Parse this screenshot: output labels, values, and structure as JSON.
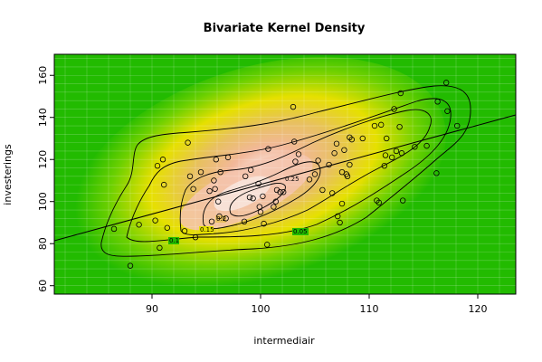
{
  "chart_data": {
    "type": "scatter",
    "title": "Bivariate Kernel Density",
    "xlabel": "intermediair",
    "ylabel": "investerings",
    "xlim": [
      81,
      123.5
    ],
    "ylim": [
      56,
      170
    ],
    "x_ticks": [
      90,
      100,
      110,
      120
    ],
    "y_ticks": [
      60,
      80,
      100,
      120,
      140,
      160
    ],
    "grid": true,
    "background_colors": {
      "low": "#22bb00",
      "mid": "#e8e000",
      "high": "#f4c0a8",
      "peak": "#f8e4dc"
    },
    "contour_levels": [
      "0.05",
      "0.1",
      "0.15",
      "0.2",
      "0.25"
    ],
    "regression_line": {
      "x": [
        81,
        123.5
      ],
      "y": [
        81.4,
        141.2
      ]
    },
    "points": [
      [
        86.5,
        87
      ],
      [
        88,
        69.5
      ],
      [
        88.8,
        89
      ],
      [
        90.3,
        91
      ],
      [
        90.5,
        117
      ],
      [
        90.7,
        78
      ],
      [
        91,
        120
      ],
      [
        91.1,
        108
      ],
      [
        91.4,
        87.5
      ],
      [
        93,
        86
      ],
      [
        93.3,
        128
      ],
      [
        93.5,
        112
      ],
      [
        93.8,
        106
      ],
      [
        94,
        83
      ],
      [
        94.5,
        114
      ],
      [
        95.3,
        105
      ],
      [
        95.5,
        90.5
      ],
      [
        95.7,
        110
      ],
      [
        95.8,
        106
      ],
      [
        95.9,
        120
      ],
      [
        96.1,
        100
      ],
      [
        96.2,
        93
      ],
      [
        96.3,
        114
      ],
      [
        96.8,
        92
      ],
      [
        97,
        121
      ],
      [
        98.5,
        90.5
      ],
      [
        98.6,
        112
      ],
      [
        99,
        102
      ],
      [
        99.1,
        115
      ],
      [
        99.3,
        101.5
      ],
      [
        99.8,
        108.5
      ],
      [
        99.9,
        97.5
      ],
      [
        100,
        95
      ],
      [
        100.2,
        102.5
      ],
      [
        100.3,
        89.5
      ],
      [
        100.6,
        79.5
      ],
      [
        100.7,
        125
      ],
      [
        101.2,
        97.5
      ],
      [
        101.4,
        100
      ],
      [
        101.5,
        105.5
      ],
      [
        101.8,
        104.5
      ],
      [
        102.1,
        104.5
      ],
      [
        103,
        145
      ],
      [
        103.1,
        128.5
      ],
      [
        103.2,
        119
      ],
      [
        103.5,
        122.5
      ],
      [
        104.5,
        110.5
      ],
      [
        105,
        113
      ],
      [
        105.3,
        119.5
      ],
      [
        105.7,
        105.5
      ],
      [
        106.3,
        117.5
      ],
      [
        106.6,
        104
      ],
      [
        106.8,
        123
      ],
      [
        107,
        127.5
      ],
      [
        107.1,
        93
      ],
      [
        107.3,
        90
      ],
      [
        107.5,
        99
      ],
      [
        107.5,
        114
      ],
      [
        107.7,
        124.5
      ],
      [
        107.9,
        113
      ],
      [
        108,
        112
      ],
      [
        108.2,
        117.5
      ],
      [
        108.2,
        130.5
      ],
      [
        108.4,
        129.5
      ],
      [
        109.4,
        130
      ],
      [
        110.5,
        136
      ],
      [
        110.7,
        100.5
      ],
      [
        110.9,
        99.5
      ],
      [
        111.1,
        136.5
      ],
      [
        111.4,
        117
      ],
      [
        111.5,
        122
      ],
      [
        111.6,
        130
      ],
      [
        112.1,
        121
      ],
      [
        112.3,
        144
      ],
      [
        112.5,
        124
      ],
      [
        112.8,
        135.5
      ],
      [
        112.9,
        151.5
      ],
      [
        113,
        123
      ],
      [
        113.1,
        100.5
      ],
      [
        114.2,
        126
      ],
      [
        115.3,
        126.5
      ],
      [
        116.2,
        113.5
      ],
      [
        116.3,
        147.5
      ],
      [
        117.1,
        156.5
      ],
      [
        117.2,
        143
      ],
      [
        118.1,
        136
      ]
    ]
  }
}
